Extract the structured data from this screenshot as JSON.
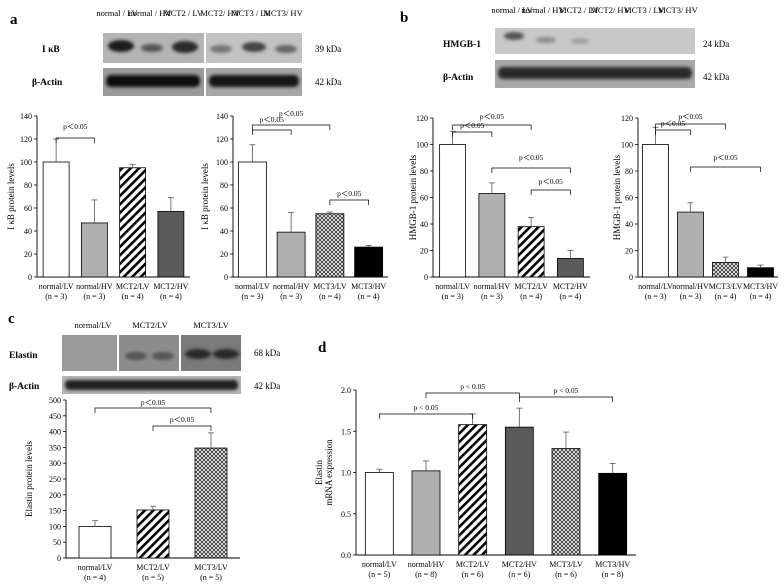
{
  "panels": {
    "a": {
      "letter": "a",
      "blot": {
        "lanes": [
          "normal / LV",
          "normal / HV",
          "MCT2 / LV",
          "MCT2/ HV",
          "MCT3 / LV",
          "MCT3/ HV"
        ],
        "rows": [
          {
            "label": "I κB",
            "kda": "39 kDa"
          },
          {
            "label": "β-Actin",
            "kda": "42 kDa"
          }
        ]
      }
    },
    "b": {
      "letter": "b",
      "blot": {
        "lanes": [
          "normal / LV",
          "normal / HV",
          "MCT2 / LV",
          "MCT2/ HV",
          "MCT3 / LV",
          "MCT3/ HV"
        ],
        "rows": [
          {
            "label": "HMGB-1",
            "kda": "24 kDa"
          },
          {
            "label": "β-Actin",
            "kda": "42 kDa"
          }
        ]
      }
    },
    "c": {
      "letter": "c",
      "blot": {
        "lanes": [
          "normal/LV",
          "MCT2/LV",
          "MCT3/LV"
        ],
        "rows": [
          {
            "label": "Elastin",
            "kda": "68 kDa"
          },
          {
            "label": "β-Actin",
            "kda": "42 kDa"
          }
        ]
      }
    },
    "d": {
      "letter": "d"
    }
  },
  "chart_data": [
    {
      "id": "a1",
      "type": "bar",
      "ylabel": "I κB protein levels",
      "ylim": [
        0,
        140
      ],
      "yticks": [
        0,
        20,
        40,
        60,
        80,
        100,
        120,
        140
      ],
      "categories": [
        "normal/LV",
        "normal/HV",
        "MCT2/LV",
        "MCT2/HV"
      ],
      "n": [
        "(n = 3)",
        "(n = 3)",
        "(n = 4)",
        "(n = 4)"
      ],
      "values": [
        100,
        47,
        95,
        57
      ],
      "errors": [
        20,
        20,
        3,
        12
      ],
      "fills": [
        "white",
        "#b0b0b0",
        "hatch",
        "#5a5a5a"
      ],
      "annotations": [
        {
          "from": 0,
          "to": 1,
          "text": "p＜0.05"
        }
      ]
    },
    {
      "id": "a2",
      "type": "bar",
      "ylabel": "I κB protein levels",
      "ylim": [
        0,
        140
      ],
      "yticks": [
        0,
        20,
        40,
        60,
        80,
        100,
        120,
        140
      ],
      "categories": [
        "normal/LV",
        "normal/HV",
        "MCT3/LV",
        "MCT3/HV"
      ],
      "n": [
        "(n = 3)",
        "(n = 3)",
        "(n = 4)",
        "(n = 4)"
      ],
      "values": [
        100,
        39,
        55,
        26
      ],
      "errors": [
        15,
        17,
        1.5,
        1.5
      ],
      "fills": [
        "white",
        "#b0b0b0",
        "cross",
        "#000000"
      ],
      "annotations": [
        {
          "from": 0,
          "to": 1,
          "text": "p＜0.05"
        },
        {
          "from": 0,
          "to": 2,
          "text": "p＜0.05"
        },
        {
          "from": 2,
          "to": 3,
          "text": "p＜0.05"
        }
      ]
    },
    {
      "id": "b1",
      "type": "bar",
      "ylabel": "HMGB-1 protein levels",
      "ylim": [
        0,
        120
      ],
      "yticks": [
        0,
        20,
        40,
        60,
        80,
        100,
        120
      ],
      "categories": [
        "normal/LV",
        "normal/HV",
        "MCT2/LV",
        "MCT2/HV"
      ],
      "n": [
        "(n = 3)",
        "(n = 3)",
        "(n = 4)",
        "(n = 4)"
      ],
      "values": [
        100,
        63,
        38,
        14
      ],
      "errors": [
        10,
        8,
        7,
        6
      ],
      "fills": [
        "white",
        "#b0b0b0",
        "hatch",
        "#5a5a5a"
      ],
      "annotations": [
        {
          "from": 0,
          "to": 1,
          "text": "p＜0.05"
        },
        {
          "from": 0,
          "to": 2,
          "text": "p＜0.05"
        },
        {
          "from": 1,
          "to": 3,
          "text": "p＜0.05"
        },
        {
          "from": 2,
          "to": 3,
          "text": "p＜0.05"
        }
      ]
    },
    {
      "id": "b2",
      "type": "bar",
      "ylabel": "HMGB-1 protein levels",
      "ylim": [
        0,
        120
      ],
      "yticks": [
        0,
        20,
        40,
        60,
        80,
        100,
        120
      ],
      "categories": [
        "normal/LV",
        "normal/HV",
        "MCT3/LV",
        "MCT3/HV"
      ],
      "n": [
        "(n = 3)",
        "(n = 3)",
        "(n = 4)",
        "(n = 4)"
      ],
      "values": [
        100,
        49,
        11,
        7
      ],
      "errors": [
        13,
        7,
        4,
        2
      ],
      "fills": [
        "white",
        "#b0b0b0",
        "cross",
        "#000000"
      ],
      "annotations": [
        {
          "from": 0,
          "to": 1,
          "text": "p＜0.05"
        },
        {
          "from": 0,
          "to": 2,
          "text": "p＜0.05"
        },
        {
          "from": 1,
          "to": 3,
          "text": "p＜0.05"
        }
      ]
    },
    {
      "id": "c1",
      "type": "bar",
      "ylabel": "Elastin protein levels",
      "ylim": [
        0,
        500
      ],
      "yticks": [
        0,
        50,
        100,
        150,
        200,
        250,
        300,
        350,
        400,
        450,
        500
      ],
      "categories": [
        "normal/LV",
        "MCT2/LV",
        "MCT3/LV"
      ],
      "n": [
        "(n = 4)",
        "(n = 5)",
        "(n = 5)"
      ],
      "values": [
        100,
        152,
        348
      ],
      "errors": [
        18,
        12,
        48
      ],
      "fills": [
        "white",
        "hatch",
        "cross"
      ],
      "annotations": [
        {
          "from": 0,
          "to": 2,
          "text": "p＜0.05"
        },
        {
          "from": 1,
          "to": 2,
          "text": "p＜0.05"
        }
      ]
    },
    {
      "id": "d1",
      "type": "bar",
      "ylabel": "Elastin mRNA expression",
      "ylim": [
        0,
        2.0
      ],
      "yticks": [
        0.0,
        0.5,
        1.0,
        1.5,
        2.0
      ],
      "categories": [
        "normal/LV",
        "normal/HV",
        "MCT2/LV",
        "MCT2/HV",
        "MCT3/LV",
        "MCT3/HV"
      ],
      "n": [
        "(n = 5)",
        "(n = 8)",
        "(n = 6)",
        "(n = 6)",
        "(n = 6)",
        "(n = 8)"
      ],
      "values": [
        1.0,
        1.02,
        1.58,
        1.55,
        1.29,
        0.99
      ],
      "errors": [
        0.04,
        0.12,
        0.13,
        0.23,
        0.2,
        0.12
      ],
      "fills": [
        "white",
        "#b0b0b0",
        "hatch",
        "#5a5a5a",
        "cross",
        "#000000"
      ],
      "annotations": [
        {
          "from": 0,
          "to": 2,
          "text": "p < 0.05"
        },
        {
          "from": 1,
          "to": 3,
          "text": "p < 0.05"
        },
        {
          "from": 3,
          "to": 5,
          "text": "p < 0.05"
        }
      ]
    }
  ]
}
